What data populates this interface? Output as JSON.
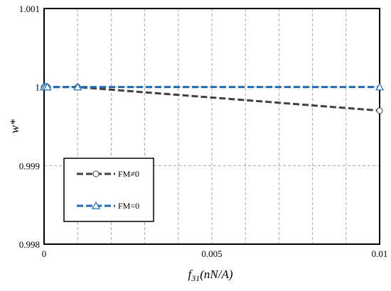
{
  "chart_data": {
    "type": "line",
    "title": "",
    "xlabel": "f",
    "xlabel_sub": "31",
    "xlabel_unit": "(nN/A)",
    "ylabel": "w*",
    "xlim": [
      0,
      0.01
    ],
    "ylim": [
      0.998,
      1.001
    ],
    "x_ticks": [
      0,
      0.005,
      0.01
    ],
    "x_tick_labels": [
      "0",
      "0.005",
      "0.01"
    ],
    "x_minor_grid": [
      0.001,
      0.002,
      0.003,
      0.004,
      0.005,
      0.006,
      0.007,
      0.008,
      0.009
    ],
    "y_ticks": [
      0.998,
      0.999,
      1,
      1.001
    ],
    "y_tick_labels": [
      "0.998",
      "0.999",
      "1",
      "1.001"
    ],
    "y_grid": [
      0.999,
      1
    ],
    "grid": true,
    "legend_position": "bottom-left",
    "series": [
      {
        "name": "FM≠0",
        "marker": "circle",
        "color": "#404040",
        "x": [
          0,
          5e-05,
          0.0001,
          0.001,
          0.01
        ],
        "y": [
          1,
          1,
          1,
          1,
          0.9997
        ]
      },
      {
        "name": "FM=0",
        "marker": "triangle",
        "color": "#1f6bb5",
        "x": [
          0,
          5e-05,
          0.0001,
          0.001,
          0.01
        ],
        "y": [
          1,
          1,
          1,
          1,
          1
        ]
      }
    ]
  }
}
